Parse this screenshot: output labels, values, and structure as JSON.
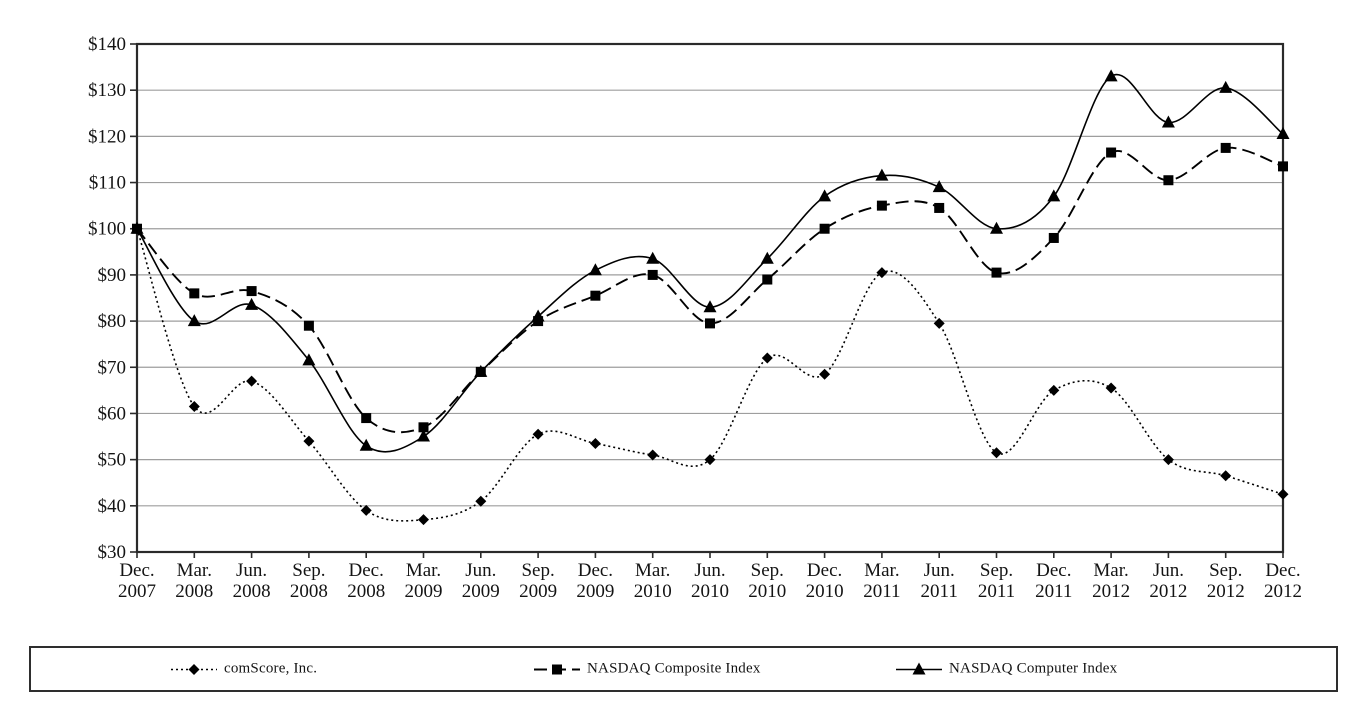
{
  "chart_data": {
    "type": "line",
    "title": "",
    "xlabel": "",
    "ylabel": "",
    "ylim": [
      30,
      140
    ],
    "y_step": 10,
    "y_tick_prefix": "$",
    "y_tick_labels": [
      "$140",
      "$130",
      "$120",
      "$110",
      "$100",
      "$90",
      "$80",
      "$70",
      "$60",
      "$50",
      "$40",
      "$30"
    ],
    "grid": "horizontal",
    "legend_position": "bottom-box",
    "smoothing": true,
    "categories": [
      "Dec. 2007",
      "Mar. 2008",
      "Jun. 2008",
      "Sep. 2008",
      "Dec. 2008",
      "Mar. 2009",
      "Jun. 2009",
      "Sep. 2009",
      "Dec. 2009",
      "Mar. 2010",
      "Jun. 2010",
      "Sep. 2010",
      "Dec. 2010",
      "Mar. 2011",
      "Jun. 2011",
      "Sep. 2011",
      "Dec. 2011",
      "Mar. 2012",
      "Jun. 2012",
      "Sep. 2012",
      "Dec. 2012"
    ],
    "series": [
      {
        "name": "comScore, Inc.",
        "marker": "diamond",
        "line": "dotted",
        "values": [
          100,
          61.5,
          67,
          54,
          39,
          37,
          41,
          55.5,
          53.5,
          51,
          50,
          72,
          68.5,
          90.5,
          79.5,
          51.5,
          65,
          65.5,
          50,
          46.5,
          42.5
        ]
      },
      {
        "name": "NASDAQ Composite Index",
        "marker": "square",
        "line": "dashed",
        "values": [
          100,
          86,
          86.5,
          79,
          59,
          57,
          69,
          80,
          85.5,
          90,
          79.5,
          89,
          100,
          105,
          104.5,
          90.5,
          98,
          116.5,
          110.5,
          117.5,
          113.5
        ]
      },
      {
        "name": "NASDAQ Computer Index",
        "marker": "triangle",
        "line": "solid",
        "values": [
          100,
          80,
          83.5,
          71.5,
          53,
          55,
          69,
          81,
          91,
          93.5,
          83,
          93.5,
          107,
          111.5,
          109,
          100,
          107,
          133,
          123,
          130.5,
          120.5
        ]
      }
    ],
    "colors": {
      "series": "#000000",
      "grid": "#9e9e9e",
      "frame": "#2a2a2a",
      "text": "#141414",
      "background": "#ffffff"
    }
  }
}
